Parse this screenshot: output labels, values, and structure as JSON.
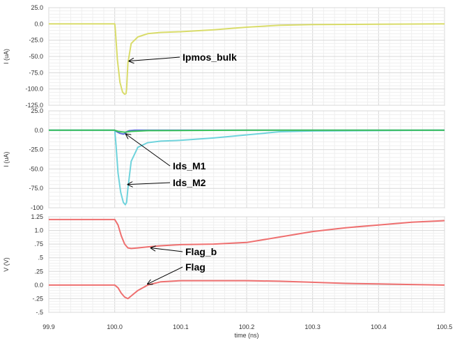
{
  "chart_data": {
    "type": "line",
    "xlabel": "time (ns)",
    "xlim": [
      99.9,
      100.5
    ],
    "xticks": [
      "99.9",
      "100.0",
      "100.1",
      "100.2",
      "100.3",
      "100.4",
      "100.5"
    ],
    "grid": true,
    "panels": [
      {
        "ylabel": "I (uA)",
        "ylim": [
          -125,
          25
        ],
        "yticks": [
          "25.0",
          "0.0",
          "-25.0",
          "-50.0",
          "-75.0",
          "-100.0",
          "-125.0"
        ],
        "series": [
          {
            "name": "Ipmos_bulk",
            "color": "#d9dc6a",
            "x": [
              99.9,
              100.0,
              100.001,
              100.004,
              100.008,
              100.012,
              100.015,
              100.017,
              100.018,
              100.02,
              100.025,
              100.035,
              100.05,
              100.07,
              100.1,
              100.15,
              100.2,
              100.25,
              100.3,
              100.4,
              100.5
            ],
            "y": [
              0,
              0,
              -10,
              -55,
              -90,
              -105,
              -108,
              -107,
              -100,
              -60,
              -30,
              -20,
              -15,
              -13,
              -12,
              -9,
              -5,
              -2,
              -1,
              -0.5,
              0
            ]
          }
        ]
      },
      {
        "ylabel": "I (uA)",
        "ylim": [
          -100,
          25
        ],
        "yticks": [
          "25.0",
          "0.0",
          "-25.0",
          "-50.0",
          "-75.0",
          "-100"
        ],
        "series": [
          {
            "name": "Ids_M2",
            "color": "#6fd3dc",
            "x": [
              99.9,
              100.0,
              100.002,
              100.005,
              100.009,
              100.013,
              100.016,
              100.018,
              100.02,
              100.025,
              100.035,
              100.05,
              100.07,
              100.1,
              100.15,
              100.2,
              100.25,
              100.3,
              100.5
            ],
            "y": [
              0,
              0,
              -20,
              -55,
              -80,
              -93,
              -96,
              -93,
              -75,
              -40,
              -22,
              -16,
              -14,
              -13,
              -10,
              -6,
              -2,
              -1,
              0
            ]
          },
          {
            "name": "Ids_M1",
            "color": "#5b6fd8",
            "x": [
              99.9,
              100.0,
              100.003,
              100.008,
              100.013,
              100.016,
              100.018,
              100.022,
              100.03,
              100.05,
              100.1,
              100.5
            ],
            "y": [
              0,
              0,
              -2,
              -4,
              -5,
              -4,
              -2,
              -0.5,
              0,
              0,
              0,
              0
            ]
          },
          {
            "name": "",
            "color": "#3cc45c",
            "x": [
              99.9,
              100.0,
              100.005,
              100.015,
              100.025,
              100.05,
              100.2,
              100.3,
              100.5
            ],
            "y": [
              0,
              0,
              -1.5,
              -2.5,
              -1.5,
              -0.5,
              0,
              0,
              0
            ]
          }
        ]
      },
      {
        "ylabel": "V (V)",
        "ylim": [
          -0.5,
          1.25
        ],
        "yticks": [
          "1.25",
          "1.0",
          ".75",
          ".5",
          ".25",
          "0.0",
          "-.25",
          "-.5"
        ],
        "series": [
          {
            "name": "Flag_b",
            "color": "#ee6f6f",
            "x": [
              99.9,
              100.0,
              100.005,
              100.01,
              100.015,
              100.02,
              100.025,
              100.035,
              100.05,
              100.07,
              100.1,
              100.15,
              100.2,
              100.25,
              100.3,
              100.35,
              100.4,
              100.45,
              100.5
            ],
            "y": [
              1.2,
              1.2,
              1.1,
              0.9,
              0.75,
              0.68,
              0.67,
              0.68,
              0.7,
              0.72,
              0.74,
              0.75,
              0.78,
              0.88,
              0.98,
              1.05,
              1.1,
              1.15,
              1.18
            ]
          },
          {
            "name": "Flag",
            "color": "#ee6f6f",
            "x": [
              99.9,
              100.0,
              100.005,
              100.01,
              100.015,
              100.02,
              100.025,
              100.035,
              100.05,
              100.07,
              100.1,
              100.15,
              100.2,
              100.25,
              100.3,
              100.35,
              100.4,
              100.45,
              100.5
            ],
            "y": [
              0,
              0,
              -0.05,
              -0.15,
              -0.22,
              -0.25,
              -0.2,
              -0.1,
              0,
              0.06,
              0.08,
              0.08,
              0.08,
              0.07,
              0.05,
              0.03,
              0.02,
              0.01,
              0
            ]
          }
        ]
      }
    ],
    "annotations": [
      {
        "text": "Ipmos_bulk",
        "panel": 0,
        "x": 100.022,
        "y": -57
      },
      {
        "text": "Ids_M1",
        "panel": 1,
        "x": 100.017,
        "y": -5
      },
      {
        "text": "Ids_M2",
        "panel": 1,
        "x": 100.02,
        "y": -70
      },
      {
        "text": "Flag_b",
        "panel": 2,
        "x": 100.055,
        "y": 0.68
      },
      {
        "text": "Flag",
        "panel": 2,
        "x": 100.05,
        "y": 0.02
      }
    ]
  }
}
